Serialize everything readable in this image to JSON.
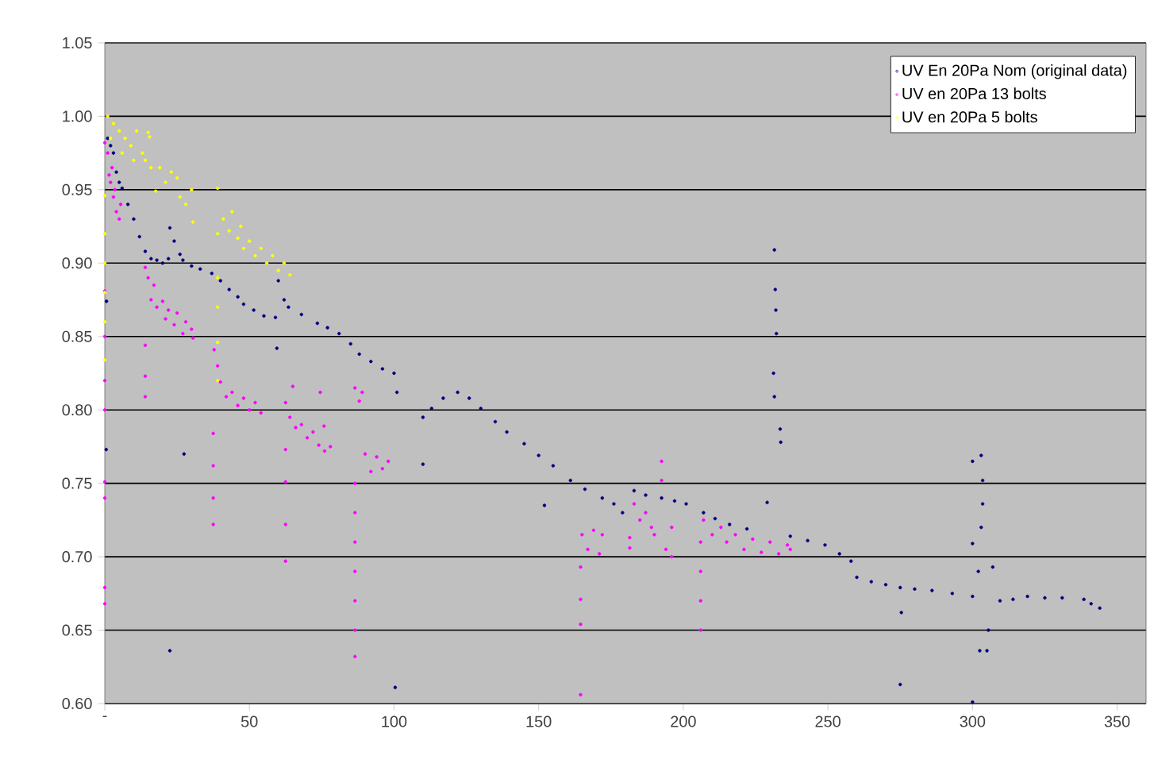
{
  "chart_data": {
    "type": "scatter",
    "marker": "circle",
    "grid": "y",
    "legend": "top right",
    "xlim": [
      0,
      360
    ],
    "ylim": [
      0.6,
      1.05
    ],
    "xticks": [
      {
        "value": 0,
        "label": "-"
      },
      50,
      100,
      150,
      200,
      250,
      300,
      350
    ],
    "yticks": [
      {
        "value": 0.6,
        "label": "0.60"
      },
      {
        "value": 0.65,
        "label": "0.65"
      },
      {
        "value": 0.7,
        "label": "0.70"
      },
      {
        "value": 0.75,
        "label": "0.75"
      },
      {
        "value": 0.8,
        "label": "0.80"
      },
      {
        "value": 0.85,
        "label": "0.85"
      },
      {
        "value": 0.9,
        "label": "0.90"
      },
      {
        "value": 0.95,
        "label": "0.95"
      },
      {
        "value": 1.0,
        "label": "1.00"
      },
      {
        "value": 1.05,
        "label": "1.05"
      }
    ],
    "series": [
      {
        "name": "UV En 20Pa Nom (original data)",
        "color": "#000080",
        "x": [
          0.5,
          0.6,
          1,
          2,
          3,
          4,
          5,
          6,
          8,
          10,
          12,
          14,
          16,
          18,
          20,
          22,
          22.5,
          24,
          26,
          27,
          27.4,
          22.5,
          30,
          33,
          37,
          40,
          43,
          46,
          48,
          51.5,
          55,
          59,
          59.5,
          60,
          62,
          63.5,
          68,
          73.5,
          77,
          81,
          85,
          88,
          92,
          96,
          100,
          100.4,
          101,
          110,
          110,
          113,
          117,
          122,
          126,
          130,
          135,
          139,
          145,
          150,
          152,
          155,
          161,
          166,
          172,
          176,
          179,
          183,
          187,
          192.5,
          197,
          201,
          207,
          211,
          216,
          222,
          229,
          231.5,
          231.8,
          232,
          232.2,
          231.2,
          231.5,
          233.5,
          233.7,
          237,
          243,
          249,
          254,
          258,
          260,
          265,
          270,
          275,
          275.4,
          275,
          280,
          286,
          293,
          300,
          300,
          300,
          303,
          303.5,
          303.5,
          303,
          300,
          302,
          305.5,
          305,
          302.5,
          307,
          309.5,
          314,
          319,
          325,
          331,
          338.5,
          341,
          344
        ],
        "values": [
          0.773,
          0.874,
          0.985,
          0.98,
          0.975,
          0.962,
          0.955,
          0.951,
          0.94,
          0.93,
          0.918,
          0.908,
          0.903,
          0.902,
          0.9,
          0.903,
          0.924,
          0.915,
          0.906,
          0.902,
          0.77,
          0.636,
          0.898,
          0.896,
          0.893,
          0.888,
          0.882,
          0.877,
          0.872,
          0.868,
          0.864,
          0.863,
          0.842,
          0.888,
          0.875,
          0.87,
          0.865,
          0.859,
          0.856,
          0.852,
          0.845,
          0.838,
          0.833,
          0.828,
          0.825,
          0.611,
          0.812,
          0.763,
          0.795,
          0.801,
          0.808,
          0.812,
          0.808,
          0.801,
          0.792,
          0.785,
          0.777,
          0.769,
          0.735,
          0.762,
          0.752,
          0.746,
          0.74,
          0.736,
          0.73,
          0.745,
          0.742,
          0.74,
          0.738,
          0.736,
          0.73,
          0.726,
          0.722,
          0.719,
          0.737,
          0.909,
          0.882,
          0.868,
          0.852,
          0.825,
          0.809,
          0.787,
          0.778,
          0.714,
          0.711,
          0.708,
          0.702,
          0.697,
          0.686,
          0.683,
          0.681,
          0.679,
          0.662,
          0.613,
          0.678,
          0.677,
          0.675,
          0.673,
          0.601,
          0.765,
          0.769,
          0.752,
          0.736,
          0.72,
          0.709,
          0.69,
          0.65,
          0.636,
          0.636,
          0.693,
          0.67,
          0.671,
          0.673,
          0.672,
          0.672,
          0.671,
          0.668,
          0.665
        ]
      },
      {
        "name": "UV en 20Pa 13 bolts",
        "color": "#ff00ff",
        "x": [
          0,
          0,
          0,
          0,
          0,
          0,
          0,
          0,
          0,
          1,
          1.5,
          2,
          2.5,
          3,
          3.5,
          4,
          5,
          5.5,
          14,
          14,
          14,
          14,
          15,
          16,
          17,
          18,
          20,
          21,
          22,
          24,
          25,
          27,
          28,
          30.5,
          30,
          37.8,
          37.5,
          37.5,
          37.5,
          37.5,
          39,
          40,
          42,
          44,
          46,
          48,
          50,
          52,
          54,
          62.5,
          62.5,
          62.5,
          62.5,
          62.5,
          64,
          65,
          66,
          68,
          70,
          72,
          74,
          74.5,
          75.8,
          76,
          78,
          86.5,
          86.5,
          86.5,
          86.5,
          86.5,
          86.5,
          86.5,
          86.5,
          88,
          89,
          90,
          92,
          94,
          96,
          98,
          164.5,
          164.5,
          164.5,
          164.5,
          165,
          167,
          169,
          171,
          172,
          181.5,
          181.5,
          183,
          185,
          187,
          189,
          190,
          192.5,
          192.5,
          194,
          196,
          196,
          206,
          206,
          206,
          206,
          207,
          210,
          213,
          215,
          218,
          221,
          224,
          227,
          230,
          233,
          236,
          237
        ],
        "values": [
          0.982,
          0.881,
          0.85,
          0.82,
          0.8,
          0.751,
          0.74,
          0.679,
          0.668,
          0.975,
          0.96,
          0.955,
          0.965,
          0.945,
          0.95,
          0.935,
          0.93,
          0.94,
          0.897,
          0.844,
          0.823,
          0.809,
          0.89,
          0.875,
          0.885,
          0.87,
          0.874,
          0.862,
          0.868,
          0.858,
          0.866,
          0.852,
          0.86,
          0.849,
          0.855,
          0.841,
          0.784,
          0.762,
          0.74,
          0.722,
          0.83,
          0.819,
          0.809,
          0.812,
          0.803,
          0.808,
          0.8,
          0.805,
          0.798,
          0.805,
          0.773,
          0.751,
          0.722,
          0.697,
          0.795,
          0.816,
          0.788,
          0.79,
          0.781,
          0.785,
          0.776,
          0.812,
          0.789,
          0.772,
          0.775,
          0.815,
          0.75,
          0.73,
          0.71,
          0.69,
          0.67,
          0.65,
          0.632,
          0.806,
          0.812,
          0.77,
          0.758,
          0.768,
          0.76,
          0.765,
          0.693,
          0.671,
          0.654,
          0.606,
          0.715,
          0.705,
          0.718,
          0.702,
          0.715,
          0.713,
          0.706,
          0.736,
          0.725,
          0.73,
          0.72,
          0.715,
          0.765,
          0.752,
          0.705,
          0.72,
          0.7,
          0.71,
          0.69,
          0.67,
          0.65,
          0.725,
          0.715,
          0.72,
          0.71,
          0.715,
          0.705,
          0.712,
          0.703,
          0.71,
          0.702,
          0.708,
          0.705
        ]
      },
      {
        "name": "UV en 20Pa 5 bolts",
        "color": "#ffff00",
        "x": [
          0,
          0,
          0,
          0,
          0,
          0,
          1,
          3,
          5,
          7,
          9,
          11,
          13,
          15,
          15.5,
          16,
          17.6,
          19,
          21,
          23,
          25,
          26,
          28,
          30.5,
          30,
          2,
          6,
          10,
          14,
          39,
          39,
          39,
          39,
          39,
          39,
          41,
          43,
          46,
          48,
          50,
          52,
          54,
          56,
          58,
          60,
          62,
          64,
          44,
          47
        ],
        "values": [
          0.946,
          0.92,
          0.9,
          0.88,
          0.86,
          0.834,
          1.0,
          0.995,
          0.99,
          0.985,
          0.98,
          0.99,
          0.975,
          0.989,
          0.986,
          0.965,
          0.949,
          0.965,
          0.955,
          0.962,
          0.958,
          0.945,
          0.94,
          0.928,
          0.95,
          0.985,
          0.975,
          0.97,
          0.97,
          0.951,
          0.92,
          0.89,
          0.87,
          0.846,
          0.82,
          0.93,
          0.922,
          0.917,
          0.91,
          0.915,
          0.905,
          0.91,
          0.9,
          0.905,
          0.895,
          0.9,
          0.892,
          0.935,
          0.925
        ]
      }
    ]
  }
}
